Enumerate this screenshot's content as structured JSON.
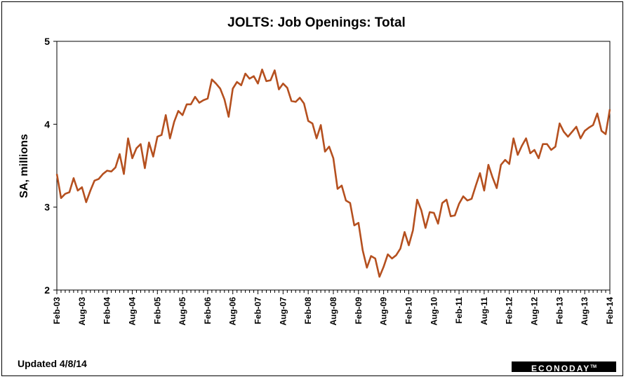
{
  "chart_data": {
    "type": "line",
    "title": "JOLTS: Job Openings: Total",
    "ylabel": "SA, millions",
    "xlabel": "",
    "ylim": [
      2,
      5
    ],
    "yticks": [
      "2",
      "3",
      "4",
      "5"
    ],
    "tick_labels": [
      "Feb-03",
      "Aug-03",
      "Feb-04",
      "Aug-04",
      "Feb-05",
      "Aug-05",
      "Feb-06",
      "Aug-06",
      "Feb-07",
      "Aug-07",
      "Feb-08",
      "Aug-08",
      "Feb-09",
      "Aug-09",
      "Feb-10",
      "Aug-10",
      "Feb-11",
      "Aug-11",
      "Feb-12",
      "Aug-12",
      "Feb-13",
      "Aug-13",
      "Feb-14"
    ],
    "start": "Feb-03",
    "line_color": "#b5501f",
    "grid": false,
    "values": [
      3.4,
      3.11,
      3.16,
      3.18,
      3.35,
      3.2,
      3.24,
      3.06,
      3.2,
      3.32,
      3.34,
      3.4,
      3.44,
      3.43,
      3.48,
      3.64,
      3.4,
      3.83,
      3.59,
      3.71,
      3.76,
      3.47,
      3.78,
      3.61,
      3.85,
      3.87,
      4.11,
      3.83,
      4.03,
      4.16,
      4.11,
      4.24,
      4.24,
      4.33,
      4.26,
      4.29,
      4.31,
      4.54,
      4.49,
      4.43,
      4.3,
      4.09,
      4.43,
      4.51,
      4.47,
      4.61,
      4.55,
      4.58,
      4.49,
      4.66,
      4.52,
      4.53,
      4.65,
      4.42,
      4.49,
      4.44,
      4.28,
      4.27,
      4.32,
      4.25,
      4.04,
      4.01,
      3.83,
      3.99,
      3.67,
      3.73,
      3.59,
      3.22,
      3.26,
      3.08,
      3.05,
      2.78,
      2.81,
      2.48,
      2.27,
      2.41,
      2.38,
      2.16,
      2.28,
      2.43,
      2.38,
      2.42,
      2.5,
      2.7,
      2.54,
      2.72,
      3.09,
      2.96,
      2.75,
      2.94,
      2.93,
      2.8,
      3.05,
      3.09,
      2.89,
      2.9,
      3.04,
      3.13,
      3.08,
      3.1,
      3.26,
      3.41,
      3.2,
      3.51,
      3.36,
      3.23,
      3.51,
      3.57,
      3.52,
      3.83,
      3.63,
      3.74,
      3.83,
      3.65,
      3.69,
      3.59,
      3.76,
      3.76,
      3.69,
      3.73,
      4.01,
      3.91,
      3.85,
      3.91,
      3.97,
      3.83,
      3.92,
      3.96,
      3.99,
      4.13,
      3.92,
      3.88,
      4.18
    ]
  },
  "footer": {
    "updated": "Updated 4/8/14",
    "brand": "ECONODAY",
    "brand_mark": "TM"
  }
}
